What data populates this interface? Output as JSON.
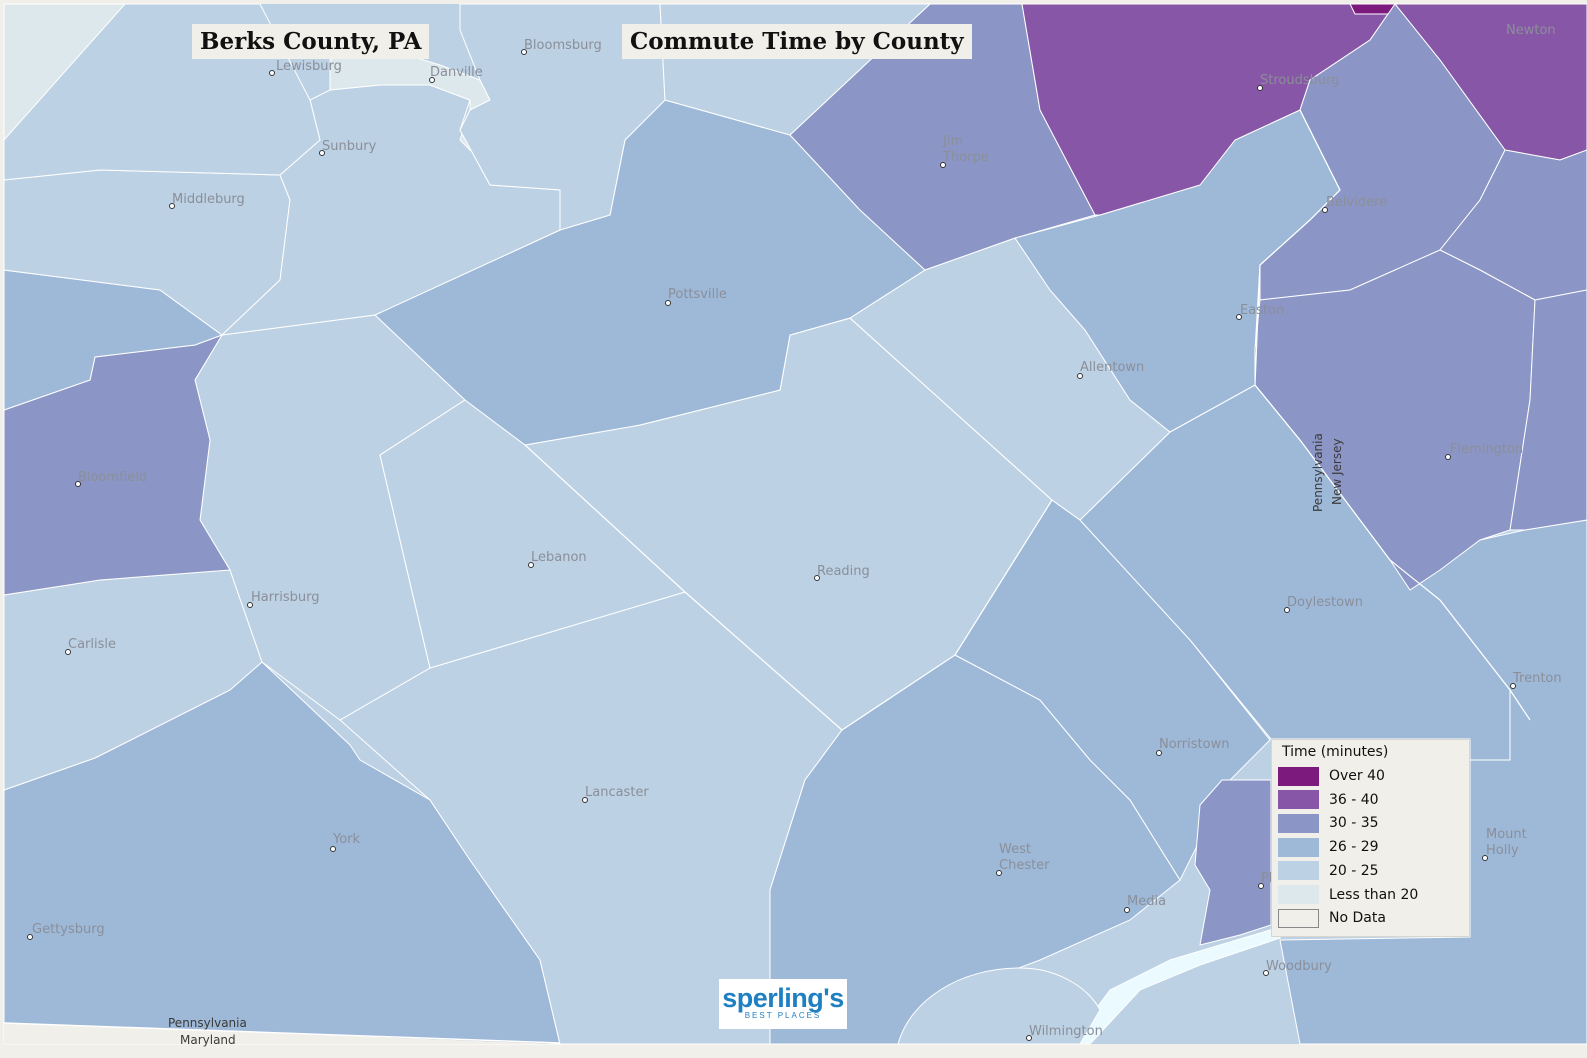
{
  "header": {
    "location": "Berks County, PA",
    "title": "Commute Time by County"
  },
  "legend": {
    "title": "Time  (minutes)",
    "items": [
      {
        "label": "Over 40",
        "color": "#7d1a7d"
      },
      {
        "label": "36 - 40",
        "color": "#8856a7"
      },
      {
        "label": "30 - 35",
        "color": "#8c96c6"
      },
      {
        "label": "26 - 29",
        "color": "#9eb9d8"
      },
      {
        "label": "20 - 25",
        "color": "#bdd1e4"
      },
      {
        "label": "Less than 20",
        "color": "#dde8ec"
      },
      {
        "label": "No Data",
        "color": "#f1efe9"
      }
    ]
  },
  "cities": {
    "lewisburg": "Lewisburg",
    "danville": "Danville",
    "bloomsburg": "Bloomsburg",
    "sunbury": "Sunbury",
    "middleburg": "Middleburg",
    "jim_thorpe_1": "Jim",
    "jim_thorpe_2": "Thorpe",
    "stroudsburg": "Stroudsburg",
    "newton": "Newton",
    "belvidere": "Belvidere",
    "pottsville": "Pottsville",
    "easton": "Easton",
    "allentown": "Allentown",
    "bloomfield": "Bloomfield",
    "flemington": "Flemington",
    "lebanon": "Lebanon",
    "reading": "Reading",
    "harrisburg": "Harrisburg",
    "carlisle": "Carlisle",
    "doylestown": "Doylestown",
    "trenton": "Trenton",
    "norristown": "Norristown",
    "lancaster": "Lancaster",
    "york": "York",
    "west_chester_1": "West",
    "west_chester_2": "Chester",
    "media": "Media",
    "philadelphia": "Ph",
    "mount_holly_1": "Mount",
    "mount_holly_2": "Holly",
    "gettysburg": "Gettysburg",
    "woodbury": "Woodbury",
    "wilmington": "Wilmington"
  },
  "state_labels": {
    "pennsylvania_east": "Pennsylvania",
    "new_jersey": "New Jersey",
    "pennsylvania_south": "Pennsylvania",
    "maryland": "Maryland"
  },
  "logo": {
    "brand": "sperling's",
    "tagline": "BEST PLACES"
  }
}
